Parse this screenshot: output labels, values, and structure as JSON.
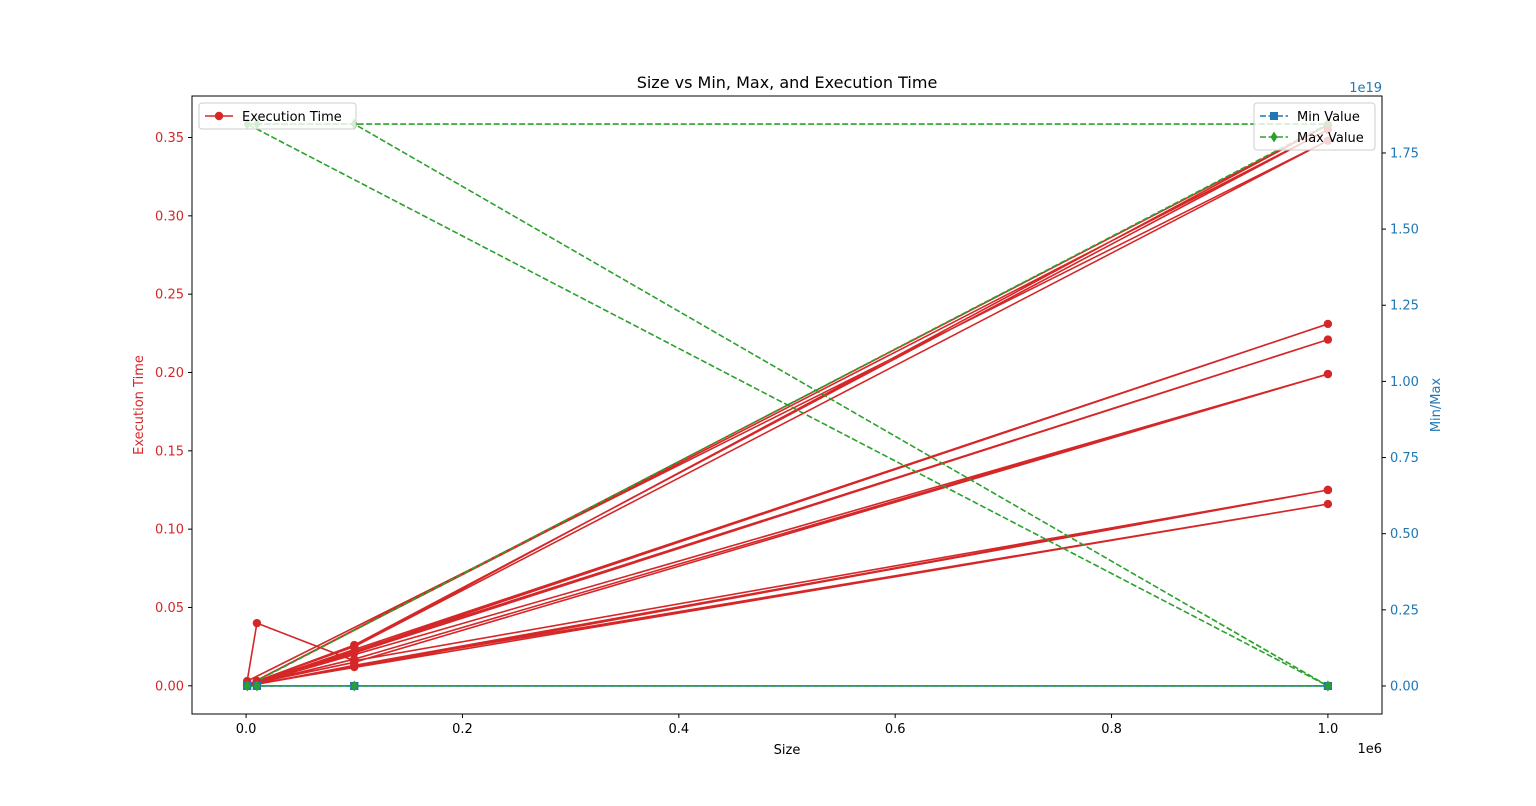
{
  "chart_data": {
    "type": "line",
    "title": "Size vs Min, Max, and Execution Time",
    "xlabel": "Size",
    "x_offset_label": "1e6",
    "x_ticks": [
      0.0,
      0.2,
      0.4,
      0.6,
      0.8,
      1.0
    ],
    "x_tick_labels": [
      "0.0",
      "0.2",
      "0.4",
      "0.6",
      "0.8",
      "1.0"
    ],
    "xlim": [
      -50000,
      1050000
    ],
    "y_left": {
      "label": "Execution Time",
      "color": "#d62728",
      "ylim": [
        -0.018,
        0.3765
      ],
      "ticks": [
        0.0,
        0.05,
        0.1,
        0.15,
        0.2,
        0.25,
        0.3,
        0.35
      ],
      "tick_labels": [
        "0.00",
        "0.05",
        "0.10",
        "0.15",
        "0.20",
        "0.25",
        "0.30",
        "0.35"
      ]
    },
    "y_right": {
      "label": "Min/Max",
      "color": "#1f77b4",
      "offset_label": "1e19",
      "ylim": [
        -0.092,
        1.937
      ],
      "ticks": [
        0.0,
        0.25,
        0.5,
        0.75,
        1.0,
        1.25,
        1.5,
        1.75
      ],
      "tick_labels": [
        "0.00",
        "0.25",
        "0.50",
        "0.75",
        "1.00",
        "1.25",
        "1.50",
        "1.75"
      ]
    },
    "legend_left": {
      "placement": "top-left",
      "entries": [
        {
          "label": "Execution Time",
          "color": "#d62728",
          "marker": "circle",
          "style": "solid"
        }
      ]
    },
    "legend_right": {
      "placement": "top-right",
      "entries": [
        {
          "label": "Min Value",
          "color": "#1f77b4",
          "marker": "square",
          "style": "dashed"
        },
        {
          "label": "Max Value",
          "color": "#2ca02c",
          "marker": "diamond",
          "style": "dashed"
        }
      ]
    },
    "series": [
      {
        "name": "Execution Time",
        "axis": "left",
        "color": "#d62728",
        "x": [
          1000,
          10000,
          100000,
          1000000,
          1000,
          10000,
          100000,
          1000000,
          1000,
          10000,
          100000,
          1000000,
          1000,
          10000,
          100000,
          1000000,
          1000,
          10000,
          100000,
          1000000,
          1000,
          10000,
          100000,
          1000000,
          1000,
          10000,
          100000,
          1000000,
          1000,
          10000,
          100000,
          1000000,
          1000,
          10000,
          100000,
          1000000,
          1000,
          10000,
          100000,
          1000000,
          1000,
          10000,
          100000,
          1000000
        ],
        "y": [
          0.0001,
          0.001,
          0.012,
          0.125,
          0.0001,
          0.001,
          0.013,
          0.125,
          0.0001,
          0.001,
          0.013,
          0.116,
          0.0002,
          0.002,
          0.017,
          0.199,
          0.0002,
          0.002,
          0.015,
          0.199,
          0.0002,
          0.002,
          0.021,
          0.221,
          0.0002,
          0.002,
          0.022,
          0.231,
          0.0003,
          0.003,
          0.026,
          0.355,
          0.0003,
          0.003,
          0.025,
          0.358,
          0.0003,
          0.003,
          0.025,
          0.348,
          0.003,
          0.04,
          0.016,
          0.125
        ]
      },
      {
        "name": "Min Value",
        "axis": "right",
        "color": "#1f77b4",
        "x": [
          1000,
          10000,
          100000,
          1000000,
          1000,
          10000,
          100000,
          1000000,
          1000,
          10000,
          100000,
          1000000
        ],
        "y": [
          0,
          0,
          0,
          0,
          0,
          0,
          0,
          0,
          0,
          0,
          0,
          0
        ]
      },
      {
        "name": "Max Value",
        "axis": "right",
        "color": "#2ca02c",
        "x": [
          1000,
          10000,
          100000,
          1000000,
          1000,
          10000,
          100000,
          1000000,
          1000,
          10000,
          100000,
          1000000
        ],
        "y": [
          1.845,
          1.845,
          1.845,
          1.845,
          0,
          0,
          0,
          0,
          1.845,
          1.845,
          1.845,
          0
        ]
      }
    ]
  }
}
